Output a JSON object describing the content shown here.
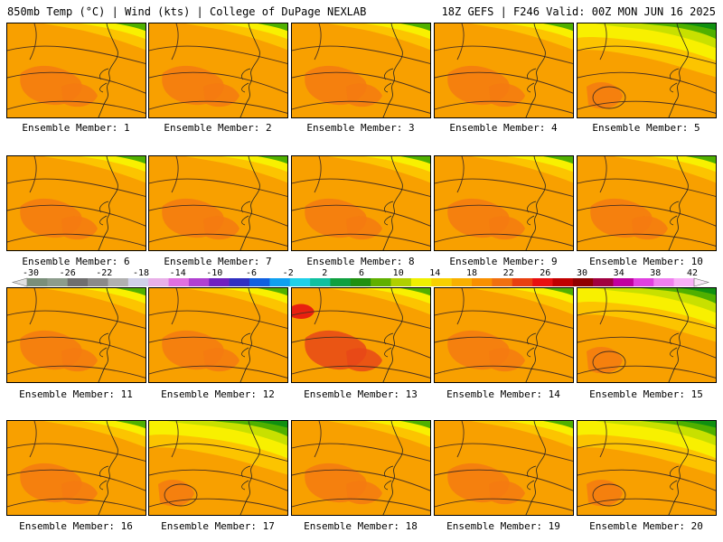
{
  "header": {
    "left": "850mb Temp (°C) | Wind (kts) | College of DuPage NEXLAB",
    "right": "18Z GEFS | F246 Valid: 00Z MON JUN 16 2025"
  },
  "members": [
    {
      "label": "Ensemble Member: 1",
      "scheme": "ns"
    },
    {
      "label": "Ensemble Member: 2",
      "scheme": "warm"
    },
    {
      "label": "Ensemble Member: 3",
      "scheme": "ns"
    },
    {
      "label": "Ensemble Member: 4",
      "scheme": "ns"
    },
    {
      "label": "Ensemble Member: 5",
      "scheme": "cool"
    },
    {
      "label": "Ensemble Member: 6",
      "scheme": "warm"
    },
    {
      "label": "Ensemble Member: 7",
      "scheme": "warm"
    },
    {
      "label": "Ensemble Member: 8",
      "scheme": "warm"
    },
    {
      "label": "Ensemble Member: 9",
      "scheme": "warm"
    },
    {
      "label": "Ensemble Member: 10",
      "scheme": "ns"
    },
    {
      "label": "Ensemble Member: 11",
      "scheme": "warm"
    },
    {
      "label": "Ensemble Member: 12",
      "scheme": "ns"
    },
    {
      "label": "Ensemble Member: 13",
      "scheme": "hot"
    },
    {
      "label": "Ensemble Member: 14",
      "scheme": "warm"
    },
    {
      "label": "Ensemble Member: 15",
      "scheme": "cool"
    },
    {
      "label": "Ensemble Member: 16",
      "scheme": "ns"
    },
    {
      "label": "Ensemble Member: 17",
      "scheme": "cool"
    },
    {
      "label": "Ensemble Member: 18",
      "scheme": "warm"
    },
    {
      "label": "Ensemble Member: 19",
      "scheme": "warm"
    },
    {
      "label": "Ensemble Member: 20",
      "scheme": "cool"
    }
  ],
  "colorbar": {
    "labels": [
      "-30",
      "-26",
      "-22",
      "-18",
      "-14",
      "-10",
      "-6",
      "-2",
      "2",
      "6",
      "10",
      "14",
      "18",
      "22",
      "26",
      "30",
      "34",
      "38",
      "42"
    ],
    "colors": [
      "#7a8f7a",
      "#8c9c8c",
      "#6f6f6f",
      "#8a8a8a",
      "#b0b0b0",
      "#d0d0e8",
      "#e8b0e8",
      "#e070e0",
      "#b040d0",
      "#7020c0",
      "#3030c0",
      "#1060e0",
      "#10a0f0",
      "#20d0e8",
      "#10c0a0",
      "#10a040",
      "#209010",
      "#60b000",
      "#b0d000",
      "#f0f000",
      "#f8d000",
      "#f8b000",
      "#f89000",
      "#f07010",
      "#e84010",
      "#e81010",
      "#c00000",
      "#900000",
      "#a00040",
      "#c000a0",
      "#e040e0",
      "#f080f0",
      "#f8b0f8"
    ]
  },
  "palette": {
    "orange": "#f8a000",
    "dark_orange": "#f47a10",
    "light_orange": "#fcc400",
    "yellow": "#f8f000",
    "yellow_green": "#c8e000",
    "green": "#50b000",
    "dark_green": "#109010",
    "red_orange": "#e84818"
  }
}
